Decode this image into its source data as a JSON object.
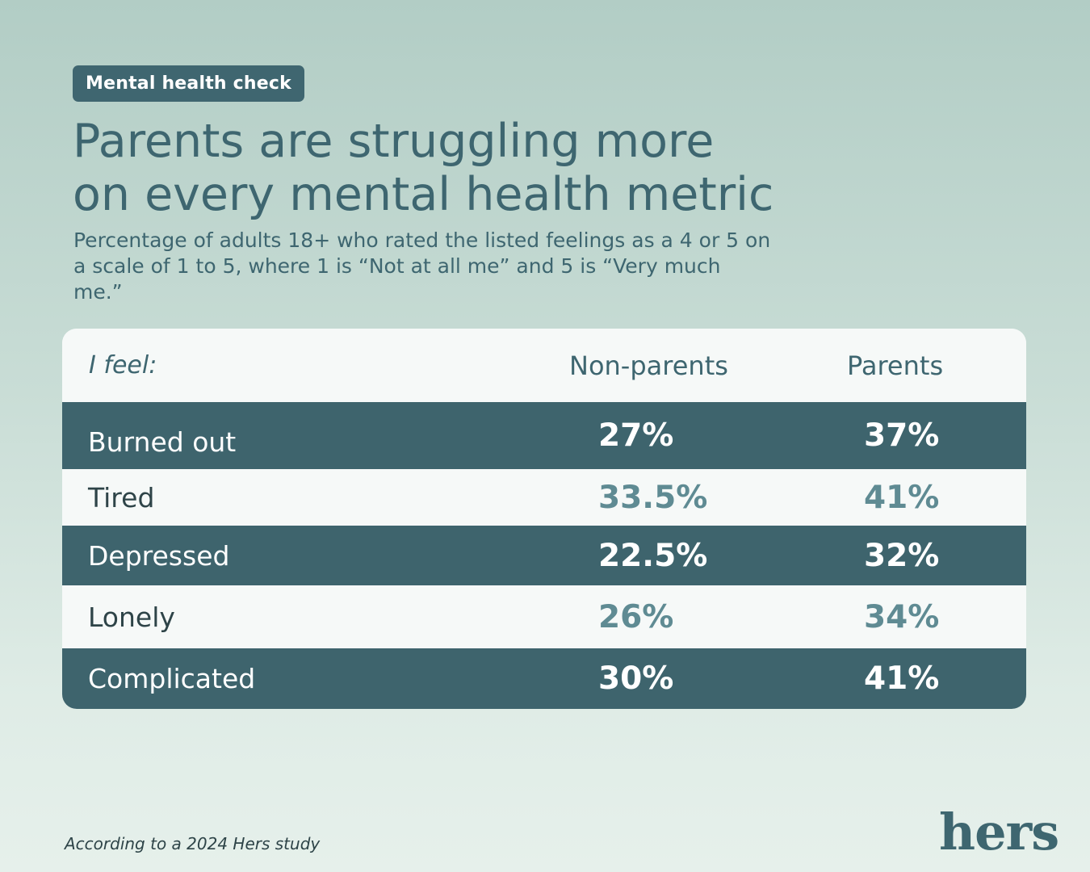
{
  "badge": "Mental health check",
  "title_line1": "Parents are struggling more",
  "title_line2": "on every mental health metric",
  "subtitle": "Percentage of adults 18+ who rated the listed feelings as a 4 or 5 on a scale of 1 to 5, where 1 is “Not at all me” and 5 is “Very much me.”",
  "footnote": "According to a 2024 Hers study",
  "logo": "hers",
  "colors": {
    "dark_row": "#3e646d",
    "light_row": "#f6f9f8",
    "accent_text": "#5f8b93",
    "heading": "#3e6670"
  },
  "chart_data": {
    "type": "table",
    "columns": [
      "I feel:",
      "Non-parents",
      "Parents"
    ],
    "rows": [
      {
        "label": "Burned out",
        "non_parents": "27%",
        "parents": "37%"
      },
      {
        "label": "Tired",
        "non_parents": "33.5%",
        "parents": "41%"
      },
      {
        "label": "Depressed",
        "non_parents": "22.5%",
        "parents": "32%"
      },
      {
        "label": "Lonely",
        "non_parents": "26%",
        "parents": "34%"
      },
      {
        "label": "Complicated",
        "non_parents": "30%",
        "parents": "41%"
      }
    ],
    "series": [
      {
        "name": "Non-parents",
        "values": [
          27,
          33.5,
          22.5,
          26,
          30
        ]
      },
      {
        "name": "Parents",
        "values": [
          37,
          41,
          32,
          34,
          41
        ]
      }
    ]
  }
}
